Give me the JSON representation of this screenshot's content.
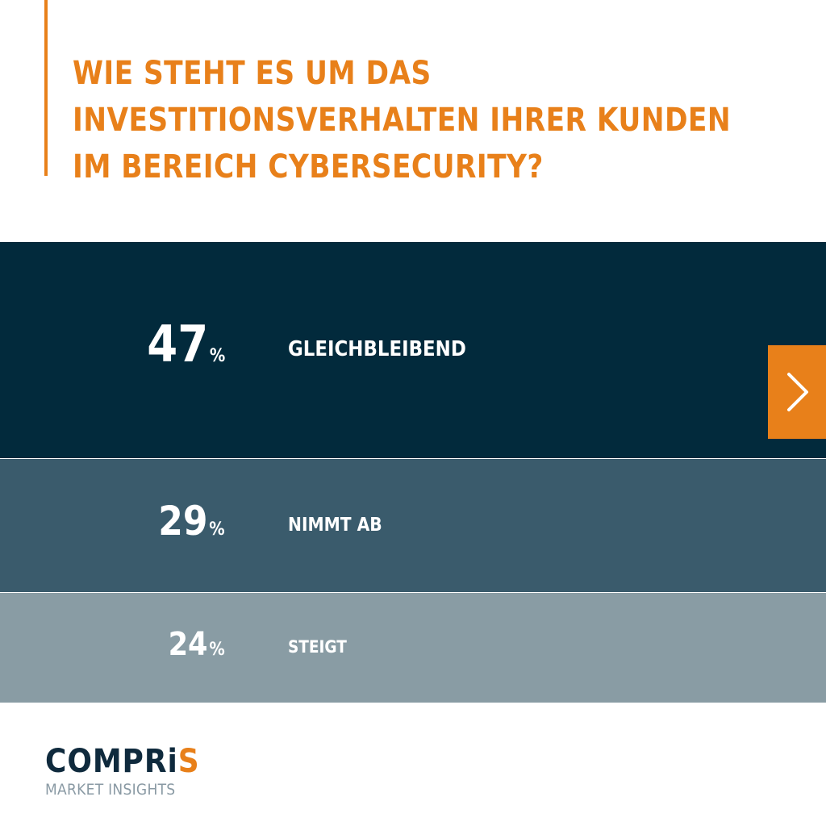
{
  "title_lines": [
    "WIE STEHT ES UM DAS",
    "INVESTITIONSVERHALTEN IHRER KUNDEN",
    "IM BEREICH CYBERSECURITY?"
  ],
  "chart_data": {
    "type": "bar",
    "title": "WIE STEHT ES UM DAS INVESTITIONSVERHALTEN IHRER KUNDEN IM BEREICH CYBERSECURITY?",
    "unit": "%",
    "categories": [
      "GLEICHBLEIBEND",
      "NIMMT AB",
      "STEIGT"
    ],
    "values": [
      47,
      29,
      24
    ],
    "colors": [
      "#022a3c",
      "#3a5b6c",
      "#899ca4"
    ]
  },
  "percent_symbol": "%",
  "next_button": {
    "icon": "chevron-right-icon",
    "color": "#e8801a"
  },
  "logo": {
    "word_main": "COMPR",
    "word_i": "i",
    "word_s": "S",
    "tagline": "MARKET INSIGHTS"
  },
  "colors": {
    "accent": "#e8801a",
    "brand_dark": "#0f2a3d"
  }
}
